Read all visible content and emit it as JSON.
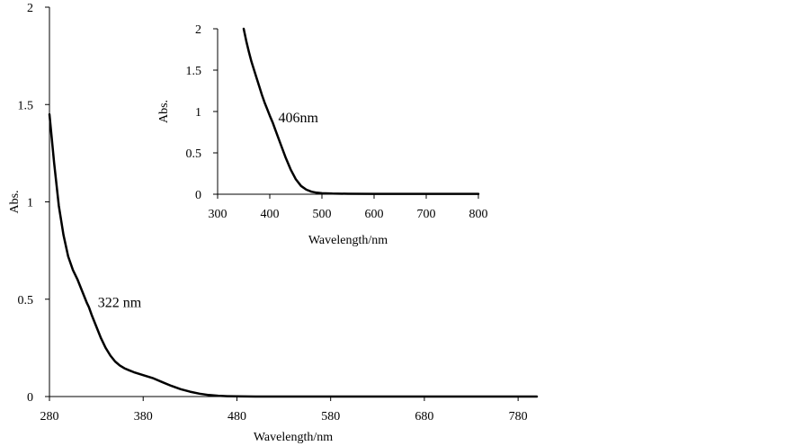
{
  "chart_data": [
    {
      "type": "line",
      "title": "",
      "xlabel": "Wavelength/nm",
      "ylabel": "Abs.",
      "xlim": [
        280,
        800
      ],
      "ylim": [
        0,
        2
      ],
      "xticks": [
        280,
        380,
        480,
        580,
        680,
        780
      ],
      "yticks": [
        0,
        0.5,
        1,
        1.5,
        2
      ],
      "grid": false,
      "series": [
        {
          "x": [
            280,
            285,
            290,
            295,
            300,
            305,
            310,
            315,
            320,
            322,
            325,
            330,
            335,
            340,
            345,
            350,
            355,
            360,
            365,
            370,
            380,
            390,
            400,
            410,
            420,
            430,
            440,
            450,
            460,
            470,
            480,
            500,
            550,
            600,
            650,
            700,
            750,
            800
          ],
          "y": [
            1.45,
            1.2,
            0.98,
            0.83,
            0.72,
            0.65,
            0.6,
            0.54,
            0.48,
            0.46,
            0.42,
            0.36,
            0.3,
            0.25,
            0.21,
            0.18,
            0.16,
            0.145,
            0.135,
            0.125,
            0.11,
            0.095,
            0.075,
            0.055,
            0.038,
            0.025,
            0.015,
            0.008,
            0.004,
            0.002,
            0.001,
            0.0,
            0.0,
            0.0,
            0.0,
            0.0,
            0.0,
            0.0
          ]
        }
      ],
      "annotations": [
        {
          "text": "322 nm",
          "x": 322,
          "y": 0.46
        }
      ]
    },
    {
      "type": "line",
      "title": "",
      "xlabel": "Wavelength/nm",
      "ylabel": "Abs.",
      "xlim": [
        300,
        800
      ],
      "ylim": [
        0,
        2
      ],
      "xticks": [
        300,
        400,
        500,
        600,
        700,
        800
      ],
      "yticks": [
        0,
        0.5,
        1,
        1.5,
        2
      ],
      "grid": false,
      "series": [
        {
          "x": [
            350,
            355,
            360,
            365,
            370,
            375,
            380,
            385,
            390,
            395,
            400,
            406,
            410,
            420,
            430,
            440,
            450,
            460,
            470,
            480,
            490,
            500,
            520,
            550,
            600,
            650,
            700,
            750,
            800
          ],
          "y": [
            2.0,
            1.85,
            1.72,
            1.6,
            1.5,
            1.4,
            1.3,
            1.2,
            1.11,
            1.03,
            0.95,
            0.86,
            0.79,
            0.62,
            0.45,
            0.3,
            0.18,
            0.1,
            0.055,
            0.03,
            0.018,
            0.012,
            0.008,
            0.005,
            0.004,
            0.004,
            0.004,
            0.004,
            0.004
          ]
        }
      ],
      "annotations": [
        {
          "text": "406nm",
          "x": 406,
          "y": 0.86
        }
      ]
    }
  ]
}
